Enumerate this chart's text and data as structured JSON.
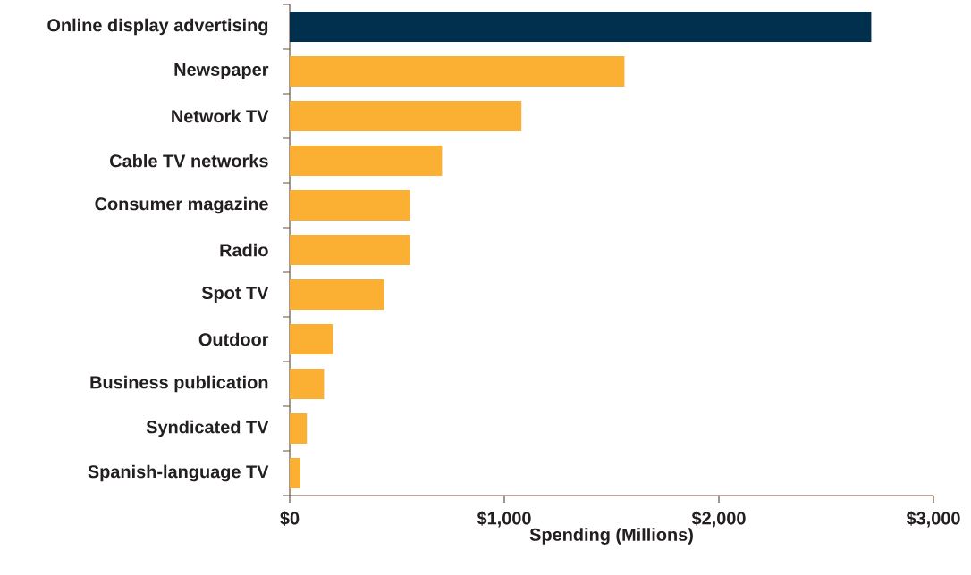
{
  "chart_data": {
    "type": "bar",
    "orientation": "horizontal",
    "categories": [
      "Online display advertising",
      "Newspaper",
      "Network TV",
      "Cable TV networks",
      "Consumer magazine",
      "Radio",
      "Spot TV",
      "Outdoor",
      "Business publication",
      "Syndicated TV",
      "Spanish-language TV"
    ],
    "values": [
      2710,
      1560,
      1080,
      710,
      560,
      560,
      440,
      200,
      160,
      80,
      50
    ],
    "colors": [
      "#00304e",
      "#fbb034",
      "#fbb034",
      "#fbb034",
      "#fbb034",
      "#fbb034",
      "#fbb034",
      "#fbb034",
      "#fbb034",
      "#fbb034",
      "#fbb034"
    ],
    "xlabel": "Spending (Millions)",
    "xlim": [
      0,
      3000
    ],
    "xticks": [
      {
        "value": 0,
        "label": "$0"
      },
      {
        "value": 1000,
        "label": "$1,000"
      },
      {
        "value": 2000,
        "label": "$2,000"
      },
      {
        "value": 3000,
        "label": "$3,000"
      }
    ]
  }
}
